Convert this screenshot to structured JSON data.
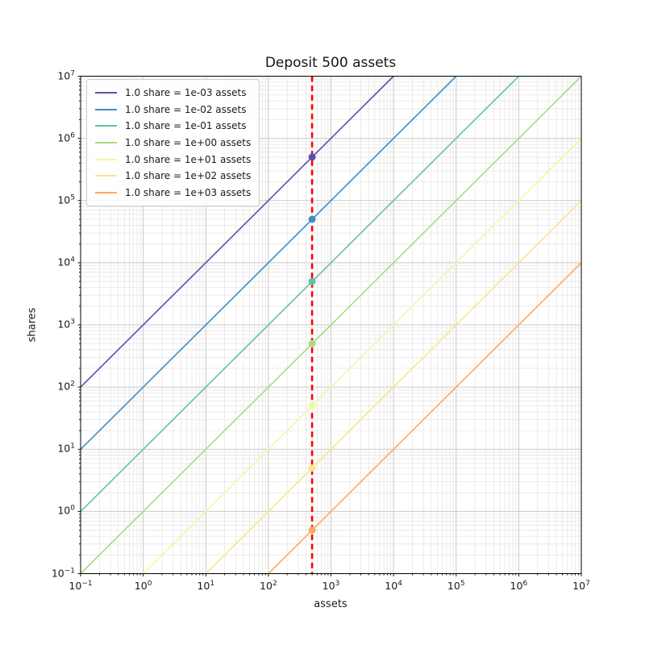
{
  "chart_data": {
    "type": "line",
    "title": "Deposit 500 assets",
    "xlabel": "assets",
    "ylabel": "shares",
    "xscale": "log",
    "yscale": "log",
    "xlim": [
      0.1,
      10000000
    ],
    "ylim": [
      0.1,
      10000000
    ],
    "x_tick_exponents": [
      -1,
      0,
      1,
      2,
      3,
      4,
      5,
      6,
      7
    ],
    "y_tick_exponents": [
      -1,
      0,
      1,
      2,
      3,
      4,
      5,
      6,
      7
    ],
    "grid": "major+minor",
    "legend_position": "upper-left",
    "deposit_assets": 500,
    "series": [
      {
        "label": "1.0 share = 1e-03 assets",
        "assets_per_share": 0.001,
        "color": "#5a51a5",
        "point": {
          "assets": 500,
          "shares": 500000
        }
      },
      {
        "label": "1.0 share = 1e-02 assets",
        "assets_per_share": 0.01,
        "color": "#3d8ec0",
        "point": {
          "assets": 500,
          "shares": 50000
        }
      },
      {
        "label": "1.0 share = 1e-01 assets",
        "assets_per_share": 0.1,
        "color": "#61c3a4",
        "point": {
          "assets": 500,
          "shares": 5000
        }
      },
      {
        "label": "1.0 share = 1e+00 assets",
        "assets_per_share": 1,
        "color": "#a8dc84",
        "point": {
          "assets": 500,
          "shares": 500
        }
      },
      {
        "label": "1.0 share = 1e+01 assets",
        "assets_per_share": 10,
        "color": "#eff9a4",
        "point": {
          "assets": 500,
          "shares": 50
        }
      },
      {
        "label": "1.0 share = 1e+02 assets",
        "assets_per_share": 100,
        "color": "#ffe38d",
        "point": {
          "assets": 500,
          "shares": 5
        }
      },
      {
        "label": "1.0 share = 1e+03 assets",
        "assets_per_share": 1000,
        "color": "#fcaa5f",
        "point": {
          "assets": 500,
          "shares": 0.5
        }
      }
    ],
    "vline": {
      "x": 500,
      "color": "#ff0000",
      "style": "dashed"
    }
  }
}
